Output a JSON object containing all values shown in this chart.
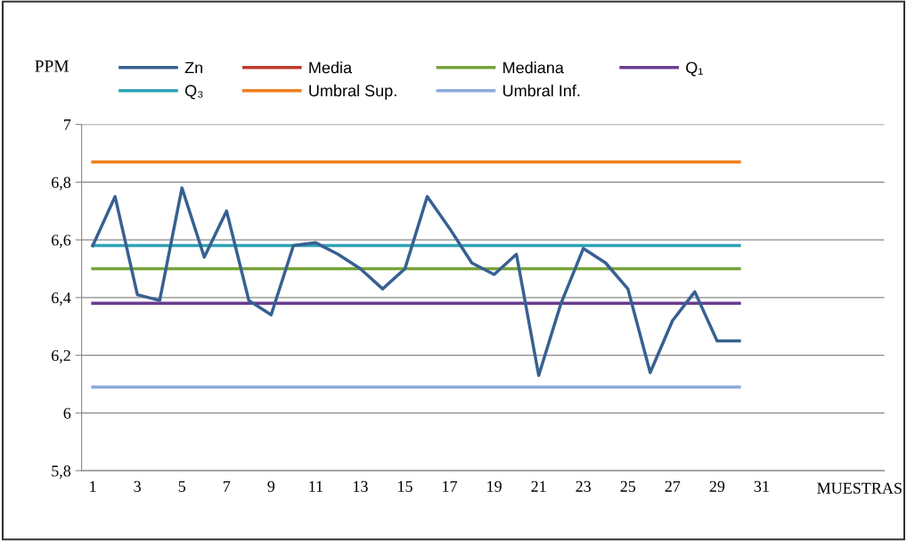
{
  "chart_data": {
    "type": "line",
    "xlabel": "MUESTRAS",
    "ylabel": "PPM",
    "categories": [
      "1",
      null,
      "3",
      null,
      "5",
      null,
      "7",
      null,
      "9",
      null,
      "11",
      null,
      "13",
      null,
      "15",
      null,
      "17",
      null,
      "19",
      null,
      "21",
      null,
      "23",
      null,
      "25",
      null,
      "27",
      null,
      "29",
      null,
      "31",
      null,
      null,
      null,
      null,
      null
    ],
    "series": [
      {
        "name": "Zn",
        "color": "#376092",
        "values": [
          6.58,
          6.75,
          6.41,
          6.39,
          6.78,
          6.54,
          6.7,
          6.39,
          6.34,
          6.58,
          6.59,
          6.55,
          6.5,
          6.43,
          6.5,
          6.75,
          6.64,
          6.52,
          6.48,
          6.55,
          6.13,
          6.38,
          6.57,
          6.52,
          6.43,
          6.14,
          6.32,
          6.42,
          6.25,
          6.25,
          null,
          null,
          null,
          null,
          null,
          null
        ]
      },
      {
        "name": "Media",
        "color": "#c0392b",
        "values": [
          null,
          null,
          null,
          null,
          null,
          null,
          null,
          null,
          null,
          null,
          null,
          null,
          null,
          null,
          null,
          null,
          null,
          null,
          null,
          null,
          null,
          null,
          null,
          null,
          null,
          null,
          null,
          null,
          null,
          null,
          null,
          null,
          null,
          null,
          null,
          null
        ]
      },
      {
        "name": "Mediana",
        "color": "#77a33a",
        "values": [
          6.5,
          6.5,
          6.5,
          6.5,
          6.5,
          6.5,
          6.5,
          6.5,
          6.5,
          6.5,
          6.5,
          6.5,
          6.5,
          6.5,
          6.5,
          6.5,
          6.5,
          6.5,
          6.5,
          6.5,
          6.5,
          6.5,
          6.5,
          6.5,
          6.5,
          6.5,
          6.5,
          6.5,
          6.5,
          6.5,
          null,
          null,
          null,
          null,
          null,
          null
        ]
      },
      {
        "name": "Q₁",
        "color": "#6a3d8f",
        "values": [
          6.38,
          6.38,
          6.38,
          6.38,
          6.38,
          6.38,
          6.38,
          6.38,
          6.38,
          6.38,
          6.38,
          6.38,
          6.38,
          6.38,
          6.38,
          6.38,
          6.38,
          6.38,
          6.38,
          6.38,
          6.38,
          6.38,
          6.38,
          6.38,
          6.38,
          6.38,
          6.38,
          6.38,
          6.38,
          6.38,
          null,
          null,
          null,
          null,
          null,
          null
        ]
      },
      {
        "name": "Q₃",
        "color": "#2fa3b8",
        "values": [
          6.58,
          6.58,
          6.58,
          6.58,
          6.58,
          6.58,
          6.58,
          6.58,
          6.58,
          6.58,
          6.58,
          6.58,
          6.58,
          6.58,
          6.58,
          6.58,
          6.58,
          6.58,
          6.58,
          6.58,
          6.58,
          6.58,
          6.58,
          6.58,
          6.58,
          6.58,
          6.58,
          6.58,
          6.58,
          6.58,
          null,
          null,
          null,
          null,
          null,
          null
        ]
      },
      {
        "name": "Umbral Sup.",
        "color": "#f07f1e",
        "values": [
          6.87,
          6.87,
          6.87,
          6.87,
          6.87,
          6.87,
          6.87,
          6.87,
          6.87,
          6.87,
          6.87,
          6.87,
          6.87,
          6.87,
          6.87,
          6.87,
          6.87,
          6.87,
          6.87,
          6.87,
          6.87,
          6.87,
          6.87,
          6.87,
          6.87,
          6.87,
          6.87,
          6.87,
          6.87,
          6.87,
          null,
          null,
          null,
          null,
          null,
          null
        ]
      },
      {
        "name": "Umbral Inf.",
        "color": "#8faadc",
        "values": [
          6.09,
          6.09,
          6.09,
          6.09,
          6.09,
          6.09,
          6.09,
          6.09,
          6.09,
          6.09,
          6.09,
          6.09,
          6.09,
          6.09,
          6.09,
          6.09,
          6.09,
          6.09,
          6.09,
          6.09,
          6.09,
          6.09,
          6.09,
          6.09,
          6.09,
          6.09,
          6.09,
          6.09,
          6.09,
          6.09,
          null,
          null,
          null,
          null,
          null,
          null
        ]
      }
    ],
    "ylim": [
      5.8,
      7
    ],
    "yticks": [
      {
        "value": 5.8,
        "label": "5,8"
      },
      {
        "value": 6,
        "label": "6"
      },
      {
        "value": 6.2,
        "label": "6,2"
      },
      {
        "value": 6.4,
        "label": "6,4"
      },
      {
        "value": 6.6,
        "label": "6,6"
      },
      {
        "value": 6.8,
        "label": "6,8"
      },
      {
        "value": 7,
        "label": "7"
      }
    ],
    "grid": "y",
    "legend": "top",
    "marker": "none",
    "line_style": "solid"
  }
}
